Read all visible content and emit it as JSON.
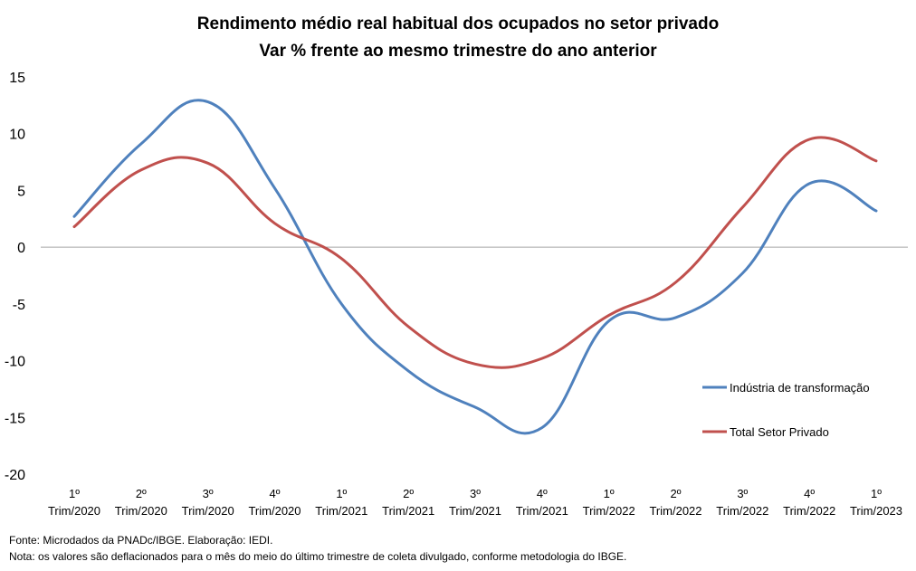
{
  "chart_data": {
    "type": "line",
    "title": [
      "Rendimento médio real habitual dos ocupados no setor privado",
      "Var %  frente ao mesmo trimestre do ano anterior"
    ],
    "categories": [
      [
        "1º",
        "Trim/2020"
      ],
      [
        "2º",
        "Trim/2020"
      ],
      [
        "3º",
        "Trim/2020"
      ],
      [
        "4º",
        "Trim/2020"
      ],
      [
        "1º",
        "Trim/2021"
      ],
      [
        "2º",
        "Trim/2021"
      ],
      [
        "3º",
        "Trim/2021"
      ],
      [
        "4º",
        "Trim/2021"
      ],
      [
        "1º",
        "Trim/2022"
      ],
      [
        "2º",
        "Trim/2022"
      ],
      [
        "3º",
        "Trim/2022"
      ],
      [
        "4º",
        "Trim/2022"
      ],
      [
        "1º",
        "Trim/2023"
      ]
    ],
    "series": [
      {
        "name": "Indústria de transformação",
        "color": "#4f81bd",
        "values": [
          2.7,
          9.1,
          12.8,
          5.2,
          -5.0,
          -10.9,
          -14.1,
          -15.9,
          -6.5,
          -6.2,
          -2.3,
          5.6,
          3.2
        ]
      },
      {
        "name": "Total Setor Privado",
        "color": "#c0504d",
        "values": [
          1.8,
          6.8,
          7.4,
          2.1,
          -1.0,
          -7.0,
          -10.3,
          -9.8,
          -6.0,
          -3.1,
          3.5,
          9.5,
          7.6
        ]
      }
    ],
    "ylim": [
      -20,
      15
    ],
    "yticks": [
      15,
      10,
      5,
      0,
      -5,
      -10,
      -15,
      -20
    ],
    "legend_position": "right",
    "grid": false
  },
  "footer": {
    "source": "Fonte: Microdados da PNADc/IBGE. Elaboração: IEDI.",
    "note": "Nota: os valores são deflacionados para o mês do meio do último trimestre de coleta divulgado, conforme metodologia do IBGE."
  }
}
